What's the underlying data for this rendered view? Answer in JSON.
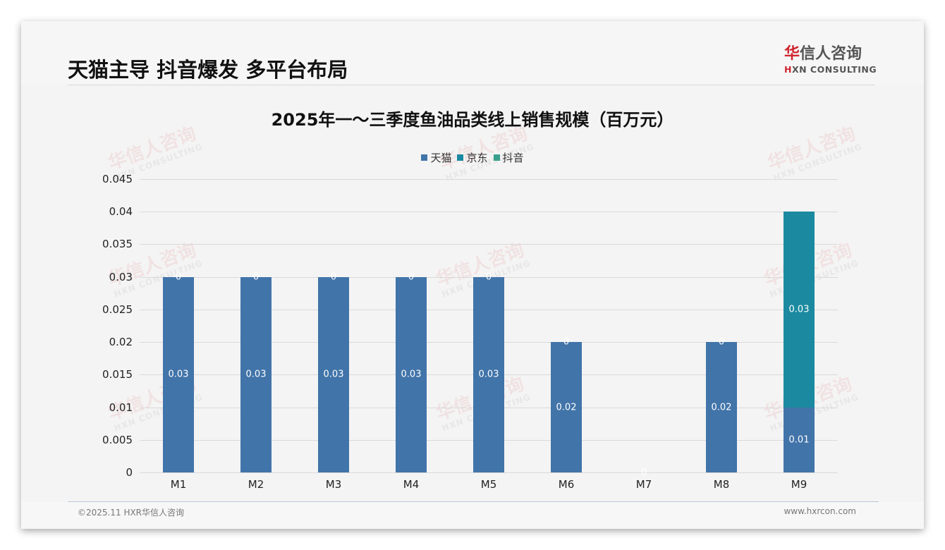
{
  "page": {
    "title": "天猫主导 抖音爆发 多平台布局",
    "logo_cn_red": "华",
    "logo_cn_rest": "信人咨询",
    "logo_en_red": "H",
    "logo_en_rest": "XN CONSULTING",
    "footer_left": "©2025.11 HXR华信人咨询",
    "footer_right": "www.hxrcon.com",
    "watermark_cn": "华信人咨询",
    "watermark_en": "HXN CONSULTING"
  },
  "colors": {
    "tmall": "#4174a9",
    "jd": "#1b8aa0",
    "douyin": "#3a9f8c"
  },
  "chart_data": {
    "type": "bar",
    "stacked": true,
    "title": "2025年一～三季度鱼油品类线上销售规模（百万元）",
    "xlabel": "",
    "ylabel": "",
    "categories": [
      "M1",
      "M2",
      "M3",
      "M4",
      "M5",
      "M6",
      "M7",
      "M8",
      "M9"
    ],
    "series": [
      {
        "name": "天猫",
        "color": "#4174a9",
        "values": [
          0.03,
          0.03,
          0.03,
          0.03,
          0.03,
          0.02,
          0,
          0.02,
          0.01
        ]
      },
      {
        "name": "京东",
        "color": "#1b8aa0",
        "values": [
          0,
          0,
          0,
          0,
          0,
          0,
          0,
          0,
          0.03
        ]
      },
      {
        "name": "抖音",
        "color": "#3a9f8c",
        "values": [
          0,
          0,
          0,
          0,
          0,
          0,
          0,
          0,
          0
        ]
      }
    ],
    "data_labels": {
      "天猫": [
        "0.03",
        "0.03",
        "0.03",
        "0.03",
        "0.03",
        "0.02",
        "0",
        "0.02",
        "0.01"
      ],
      "京东": [
        "0",
        "0",
        "0",
        "0",
        "0",
        "0",
        "",
        "0",
        "0.03"
      ]
    },
    "ylim": [
      0,
      0.045
    ],
    "yticks": [
      "0",
      "0.005",
      "0.01",
      "0.015",
      "0.02",
      "0.025",
      "0.03",
      "0.035",
      "0.04",
      "0.045"
    ],
    "grid": true,
    "legend_position": "top"
  }
}
